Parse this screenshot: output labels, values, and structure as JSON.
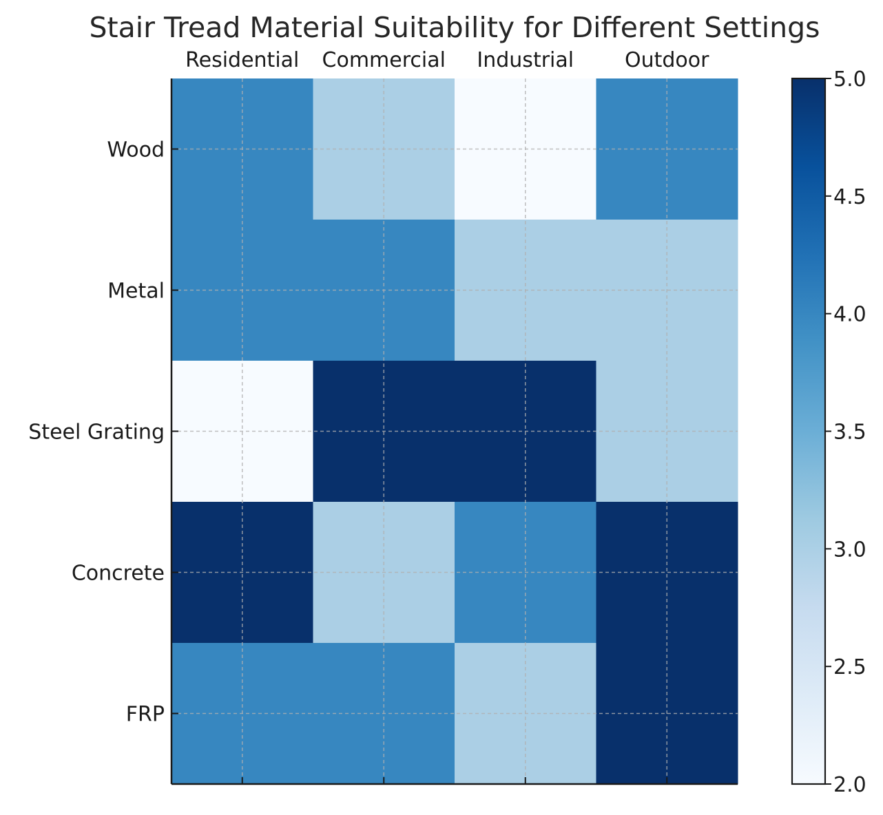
{
  "chart_data": {
    "type": "heatmap",
    "title": "Stair Tread Material Suitability for Different Settings",
    "x_categories": [
      "Residential",
      "Commercial",
      "Industrial",
      "Outdoor"
    ],
    "y_categories": [
      "Wood",
      "Metal",
      "Steel Grating",
      "Concrete",
      "FRP"
    ],
    "values": [
      [
        4,
        3,
        2,
        4
      ],
      [
        4,
        4,
        3,
        3
      ],
      [
        2,
        5,
        5,
        3
      ],
      [
        5,
        3,
        4,
        5
      ],
      [
        4,
        4,
        3,
        5
      ]
    ],
    "x_axis_position": "top",
    "grid": true,
    "colormap": "Blues",
    "colorbar": {
      "range": [
        2.0,
        5.0
      ],
      "ticks": [
        "2.0",
        "2.5",
        "3.0",
        "3.5",
        "4.0",
        "4.5",
        "5.0"
      ],
      "position": "right"
    },
    "colors": {
      "cell_2": "#f7fbff",
      "cell_3": "#abcfe5",
      "cell_4": "#3787c0",
      "cell_5": "#08306b",
      "grid": "#b0b0b0",
      "axis": "#1a1a1a"
    }
  }
}
